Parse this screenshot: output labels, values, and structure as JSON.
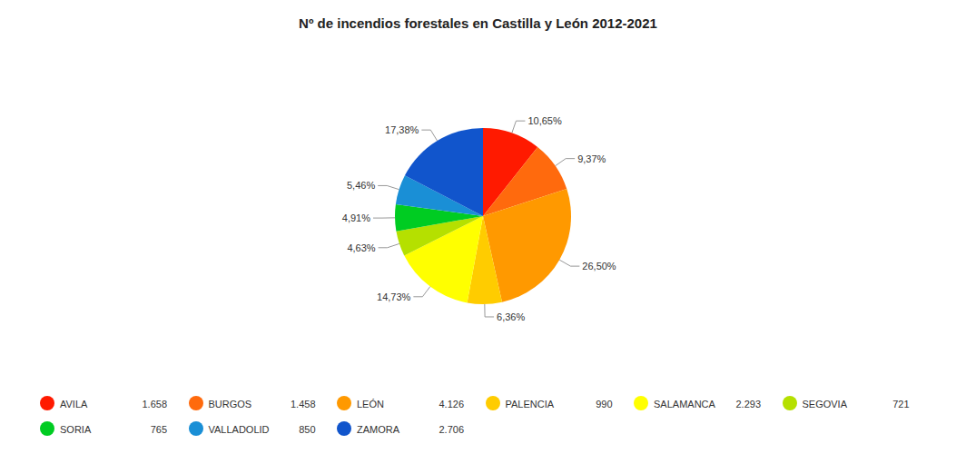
{
  "chart_data": {
    "type": "pie",
    "title": "Nº de incendios forestales en Castilla y León 2012-2021",
    "categories": [
      "AVILA",
      "BURGOS",
      "LEÓN",
      "PALENCIA",
      "SALAMANCA",
      "SEGOVIA",
      "SORIA",
      "VALLADOLID",
      "ZAMORA"
    ],
    "values": [
      1658,
      1458,
      4126,
      990,
      2293,
      721,
      765,
      850,
      2706
    ],
    "value_labels": [
      "1.658",
      "1.458",
      "4.126",
      "990",
      "2.293",
      "721",
      "765",
      "850",
      "2.706"
    ],
    "percentages": [
      10.65,
      9.37,
      26.5,
      6.36,
      14.73,
      4.63,
      4.91,
      5.46,
      17.38
    ],
    "percentage_labels": [
      "10,65%",
      "9,37%",
      "26,50%",
      "6,36%",
      "14,73%",
      "4,63%",
      "4,91%",
      "5,46%",
      "17,38%"
    ],
    "colors": [
      "#ff1a00",
      "#ff6a0d",
      "#ff9900",
      "#ffcc00",
      "#ffff00",
      "#b5e000",
      "#00cc22",
      "#1a8fd6",
      "#1155cc"
    ],
    "data_labels": true,
    "legend": "bottom"
  }
}
